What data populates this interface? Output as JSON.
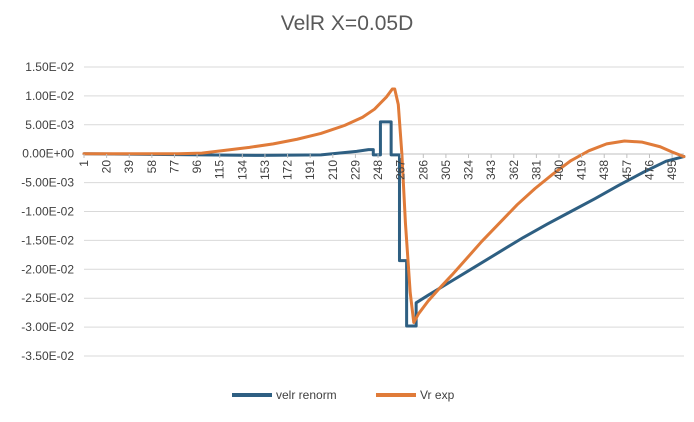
{
  "chart_data": {
    "type": "line",
    "title": "VelR X=0.05D",
    "xlabel": "",
    "ylabel": "",
    "ylim": [
      -0.035,
      0.015
    ],
    "yticks": [
      0.015,
      0.01,
      0.005,
      0,
      -0.005,
      -0.01,
      -0.015,
      -0.02,
      -0.025,
      -0.03,
      -0.035
    ],
    "ytick_labels": [
      "1.50E-02",
      "1.00E-02",
      "5.00E-03",
      "0.00E+00",
      "-5.00E-03",
      "-1.00E-02",
      "-1.50E-02",
      "-2.00E-02",
      "-2.50E-02",
      "-3.00E-02",
      "-3.50E-02"
    ],
    "xlim": [
      1,
      505
    ],
    "x_tick_labels": [
      1,
      20,
      39,
      58,
      77,
      96,
      115,
      134,
      153,
      172,
      191,
      210,
      229,
      248,
      267,
      286,
      305,
      324,
      343,
      362,
      381,
      400,
      419,
      438,
      457,
      476,
      495
    ],
    "grid": true,
    "legend_position": "bottom",
    "series": [
      {
        "name": "velr renorm",
        "color": "#2e5f82",
        "points": [
          [
            1,
            0
          ],
          [
            100,
            -0.0002
          ],
          [
            150,
            -0.0003
          ],
          [
            200,
            -0.0002
          ],
          [
            215,
            0.0001
          ],
          [
            230,
            0.0004
          ],
          [
            240,
            0.0007
          ],
          [
            244,
            0.0007
          ],
          [
            244,
            -0.0002
          ],
          [
            250,
            -0.0002
          ],
          [
            250,
            0.0055
          ],
          [
            259,
            0.0055
          ],
          [
            259,
            -0.0002
          ],
          [
            266,
            -0.0002
          ],
          [
            266,
            -0.0185
          ],
          [
            272,
            -0.0185
          ],
          [
            272,
            -0.0298
          ],
          [
            280,
            -0.0298
          ],
          [
            280,
            -0.0258
          ],
          [
            290,
            -0.0245
          ],
          [
            310,
            -0.022
          ],
          [
            330,
            -0.0195
          ],
          [
            350,
            -0.017
          ],
          [
            370,
            -0.0145
          ],
          [
            390,
            -0.0122
          ],
          [
            410,
            -0.01
          ],
          [
            430,
            -0.0078
          ],
          [
            450,
            -0.0055
          ],
          [
            470,
            -0.0033
          ],
          [
            490,
            -0.0013
          ],
          [
            505,
            -0.0005
          ]
        ]
      },
      {
        "name": "Vr exp",
        "color": "#e07b39",
        "points": [
          [
            1,
            0
          ],
          [
            80,
            0
          ],
          [
            100,
            0.0001
          ],
          [
            120,
            0.0006
          ],
          [
            140,
            0.0011
          ],
          [
            160,
            0.0017
          ],
          [
            180,
            0.0025
          ],
          [
            200,
            0.0035
          ],
          [
            220,
            0.0049
          ],
          [
            235,
            0.0063
          ],
          [
            245,
            0.0077
          ],
          [
            255,
            0.0098
          ],
          [
            260,
            0.0112
          ],
          [
            262,
            0.0112
          ],
          [
            265,
            0.0085
          ],
          [
            268,
            0.0
          ],
          [
            271,
            -0.012
          ],
          [
            275,
            -0.024
          ],
          [
            278,
            -0.0292
          ],
          [
            282,
            -0.0277
          ],
          [
            290,
            -0.0255
          ],
          [
            300,
            -0.0232
          ],
          [
            310,
            -0.021
          ],
          [
            320,
            -0.0187
          ],
          [
            335,
            -0.0152
          ],
          [
            350,
            -0.012
          ],
          [
            365,
            -0.0088
          ],
          [
            380,
            -0.006
          ],
          [
            395,
            -0.0035
          ],
          [
            410,
            -0.0012
          ],
          [
            425,
            0.0005
          ],
          [
            440,
            0.0017
          ],
          [
            455,
            0.0022
          ],
          [
            470,
            0.002
          ],
          [
            485,
            0.0012
          ],
          [
            495,
            0.0003
          ],
          [
            505,
            -0.0005
          ]
        ]
      }
    ]
  }
}
